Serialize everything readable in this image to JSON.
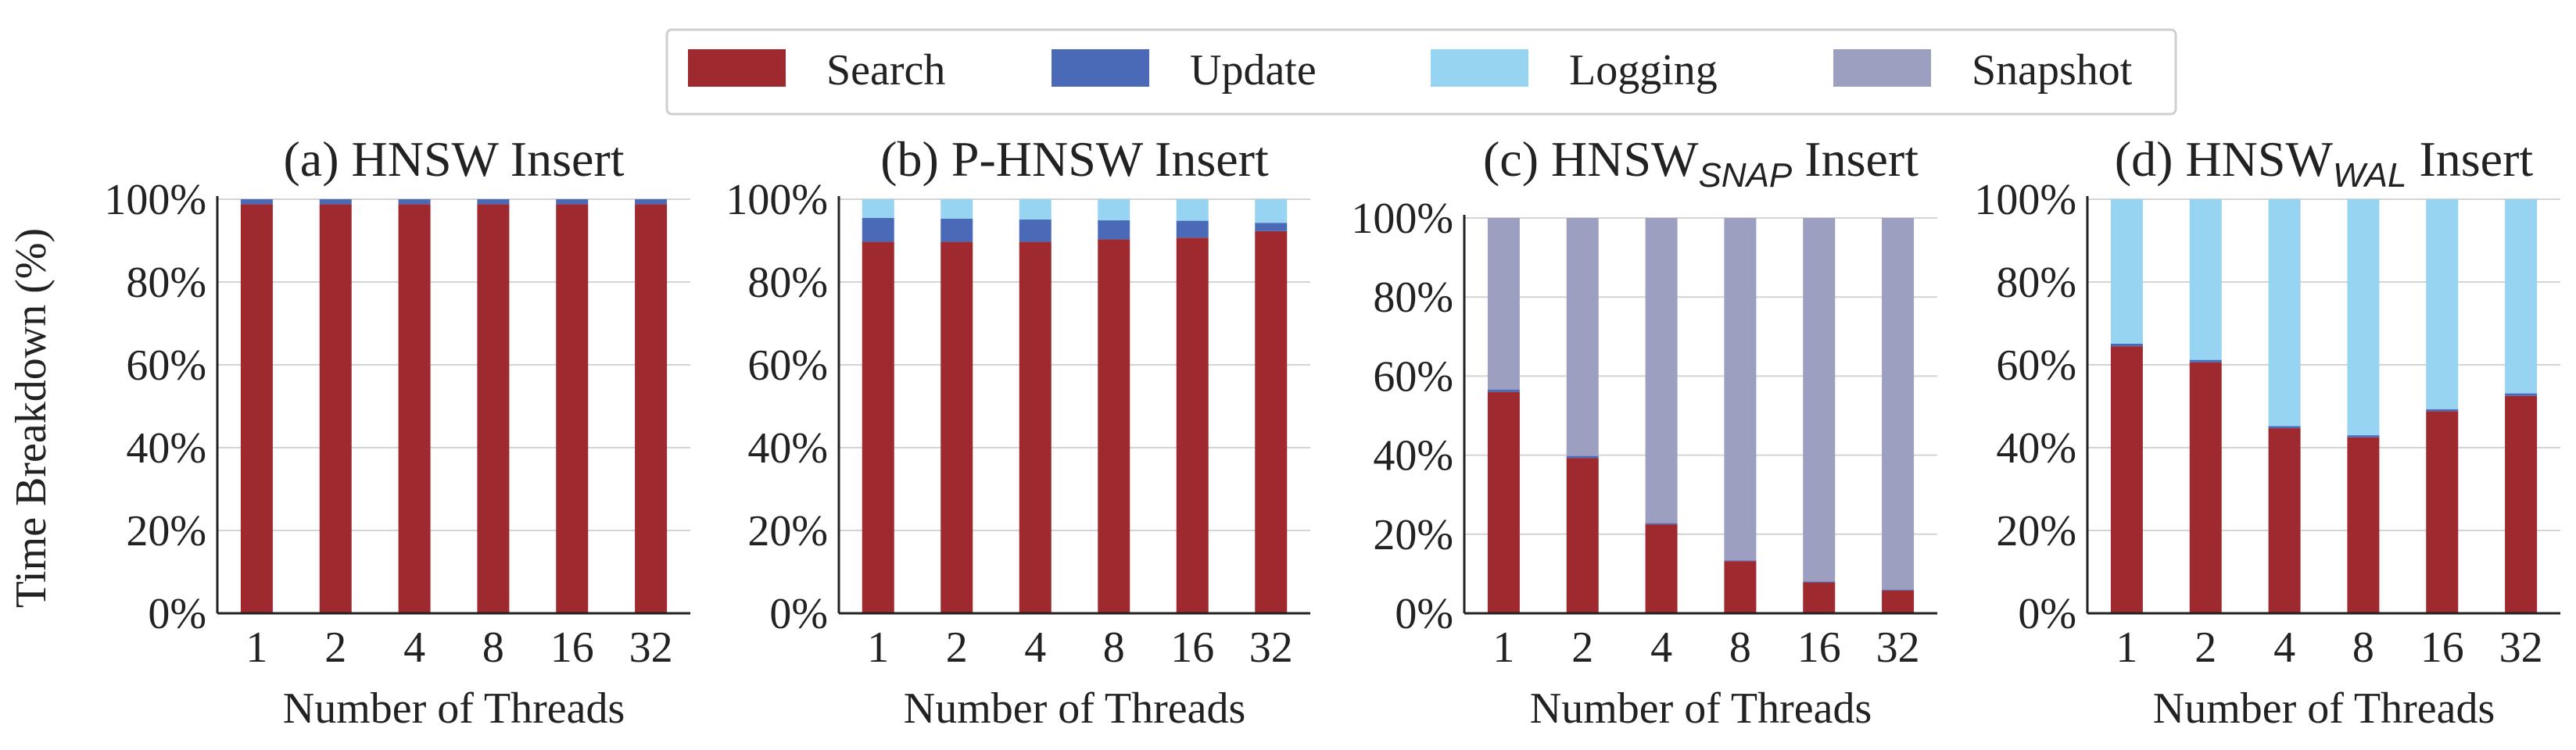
{
  "chart_data": {
    "type": "bar",
    "stacked": true,
    "ylabel": "Time Breakdown (%)",
    "legend": {
      "placement": "top-center",
      "entries": [
        {
          "name": "Search",
          "color": "#9e2a2f"
        },
        {
          "name": "Update",
          "color": "#4a6ab8"
        },
        {
          "name": "Logging",
          "color": "#96d4f2"
        },
        {
          "name": "Snapshot",
          "color": "#9c9fc0"
        }
      ]
    },
    "yticks": [
      "0%",
      "20%",
      "40%",
      "60%",
      "80%",
      "100%"
    ],
    "ylim": [
      0,
      100
    ],
    "grid": "horizontal",
    "panels": [
      {
        "title": "(a) HNSW Insert",
        "xlabel": "Number of Threads",
        "categories": [
          "1",
          "2",
          "4",
          "8",
          "16",
          "32"
        ],
        "series": [
          {
            "name": "Search",
            "values": [
              98.8,
              98.8,
              98.8,
              98.8,
              98.8,
              98.8
            ]
          },
          {
            "name": "Update",
            "values": [
              1.2,
              1.2,
              1.2,
              1.2,
              1.2,
              1.2
            ]
          },
          {
            "name": "Logging",
            "values": [
              0,
              0,
              0,
              0,
              0,
              0
            ]
          },
          {
            "name": "Snapshot",
            "values": [
              0,
              0,
              0,
              0,
              0,
              0
            ]
          }
        ]
      },
      {
        "title": "(b) P-HNSW Insert",
        "xlabel": "Number of Threads",
        "categories": [
          "1",
          "2",
          "4",
          "8",
          "16",
          "32"
        ],
        "series": [
          {
            "name": "Search",
            "values": [
              89.7,
              89.7,
              89.7,
              90.3,
              90.7,
              92.3
            ]
          },
          {
            "name": "Update",
            "values": [
              5.8,
              5.6,
              5.4,
              4.6,
              4.1,
              2.0
            ]
          },
          {
            "name": "Logging",
            "values": [
              4.5,
              4.7,
              4.9,
              5.1,
              5.2,
              5.7
            ]
          },
          {
            "name": "Snapshot",
            "values": [
              0,
              0,
              0,
              0,
              0,
              0
            ]
          }
        ]
      },
      {
        "title": "(c) HNSW",
        "title_sub": "SNAP",
        "title_suffix": " Insert",
        "xlabel": "Number of Threads",
        "categories": [
          "1",
          "2",
          "4",
          "8",
          "16",
          "32"
        ],
        "series": [
          {
            "name": "Search",
            "values": [
              56,
              39.3,
              22.5,
              13.2,
              7.8,
              5.8
            ]
          },
          {
            "name": "Update",
            "values": [
              0.6,
              0.5,
              0.3,
              0.2,
              0.2,
              0.2
            ]
          },
          {
            "name": "Logging",
            "values": [
              0,
              0,
              0,
              0,
              0,
              0
            ]
          },
          {
            "name": "Snapshot",
            "values": [
              43.4,
              60.2,
              77.2,
              86.6,
              92.0,
              94.0
            ]
          }
        ]
      },
      {
        "title": "(d) HNSW",
        "title_sub": "WAL",
        "title_suffix": " Insert",
        "xlabel": "Number of Threads",
        "categories": [
          "1",
          "2",
          "4",
          "8",
          "16",
          "32"
        ],
        "series": [
          {
            "name": "Search",
            "values": [
              64.5,
              60.6,
              44.7,
              42.5,
              48.8,
              52.5
            ]
          },
          {
            "name": "Update",
            "values": [
              0.6,
              0.6,
              0.5,
              0.5,
              0.5,
              0.6
            ]
          },
          {
            "name": "Logging",
            "values": [
              34.9,
              38.8,
              54.8,
              57.0,
              50.7,
              46.9
            ]
          },
          {
            "name": "Snapshot",
            "values": [
              0,
              0,
              0,
              0,
              0,
              0
            ]
          }
        ]
      }
    ]
  }
}
